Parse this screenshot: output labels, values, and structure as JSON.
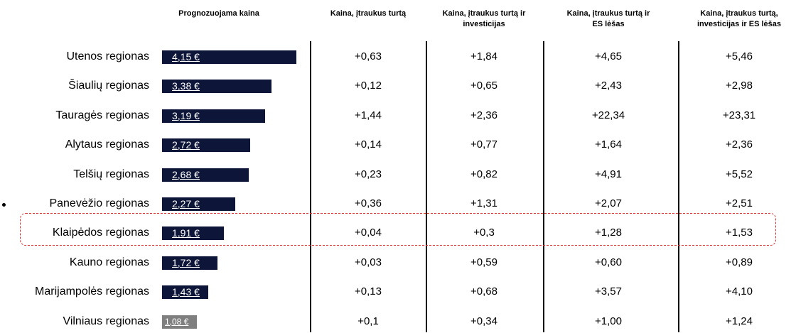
{
  "chart_data": {
    "type": "bar",
    "title": "Prognozuojama kaina",
    "categories": [
      "Utenos regionas",
      "Šiaulių regionas",
      "Tauragės regionas",
      "Alytaus regionas",
      "Telšių regionas",
      "Panevėžio regionas",
      "Klaipėdos regionas",
      "Kauno regionas",
      "Marijampolės regionas",
      "Vilniaus regionas"
    ],
    "values": [
      4.15,
      3.38,
      3.19,
      2.72,
      2.68,
      2.27,
      1.91,
      1.72,
      1.43,
      1.08
    ],
    "value_labels": [
      "4,15 €",
      "3,38 €",
      "3,19 €",
      "2,72 €",
      "2,68 €",
      "2,27 €",
      "1,91 €",
      "1,72 €",
      "1,43 €",
      "1,08 €"
    ],
    "colors": [
      "#0d1538",
      "#0d1538",
      "#0d1538",
      "#0d1538",
      "#0d1538",
      "#0d1538",
      "#0d1538",
      "#0d1538",
      "#0d1538",
      "#7f7f7f"
    ]
  },
  "table": {
    "columns": [
      "Kaina, įtraukus turtą",
      "Kaina, įtraukus turtą ir investicijas",
      "Kaina, įtraukus turtą ir ES lėšas",
      "Kaina, įtraukus turtą, investicijas ir ES lėšas"
    ],
    "rows": [
      [
        "+0,63",
        "+1,84",
        "+4,65",
        "+5,46"
      ],
      [
        "+0,12",
        "+0,65",
        "+2,43",
        "+2,98"
      ],
      [
        "+1,44",
        "+2,36",
        "+22,34",
        "+23,31"
      ],
      [
        "+0,14",
        "+0,77",
        "+1,64",
        "+2,36"
      ],
      [
        "+0,23",
        "+0,82",
        "+4,91",
        "+5,52"
      ],
      [
        "+0,36",
        "+1,31",
        "+2,07",
        "+2,51"
      ],
      [
        "+0,04",
        "+0,3",
        "+1,28",
        "+1,53"
      ],
      [
        "+0,03",
        "+0,59",
        "+0,60",
        "+0,89"
      ],
      [
        "+0,13",
        "+0,68",
        "+3,57",
        "+4,10"
      ],
      [
        "+0,1",
        "+0,34",
        "+1,00",
        "+1,24"
      ]
    ]
  }
}
